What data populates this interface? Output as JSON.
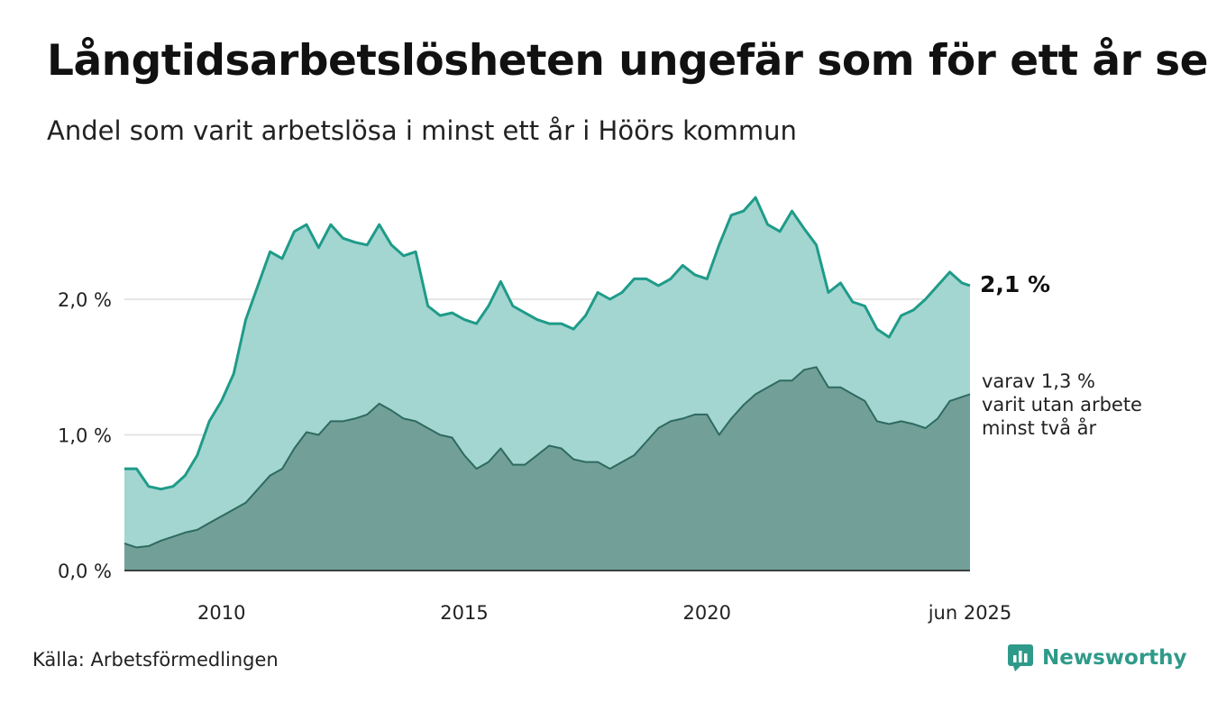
{
  "chart_data": {
    "type": "area",
    "title": "Långtidsarbetslösheten ungefär som för ett år sen",
    "subtitle": "Andel som varit arbetslösa i minst ett år i Höörs kommun",
    "x_ticks": [
      "2010",
      "2015",
      "2020",
      "jun 2025"
    ],
    "y_ticks": [
      "0,0 %",
      "1,0 %",
      "2,0 %"
    ],
    "ylim": [
      0,
      3.0
    ],
    "xlim": [
      "2008-01",
      "2025-06"
    ],
    "grid": true,
    "series": [
      {
        "label": "2,1 %",
        "color": "#1f9b89",
        "fill": "#a3d6d0",
        "points": [
          [
            "2008-01",
            0.75
          ],
          [
            "2008-04",
            0.75
          ],
          [
            "2008-07",
            0.62
          ],
          [
            "2008-10",
            0.6
          ],
          [
            "2009-01",
            0.62
          ],
          [
            "2009-04",
            0.7
          ],
          [
            "2009-07",
            0.85
          ],
          [
            "2009-10",
            1.1
          ],
          [
            "2010-01",
            1.25
          ],
          [
            "2010-04",
            1.45
          ],
          [
            "2010-07",
            1.85
          ],
          [
            "2010-10",
            2.1
          ],
          [
            "2011-01",
            2.35
          ],
          [
            "2011-04",
            2.3
          ],
          [
            "2011-07",
            2.5
          ],
          [
            "2011-10",
            2.55
          ],
          [
            "2012-01",
            2.38
          ],
          [
            "2012-04",
            2.55
          ],
          [
            "2012-07",
            2.45
          ],
          [
            "2012-10",
            2.42
          ],
          [
            "2013-01",
            2.4
          ],
          [
            "2013-04",
            2.55
          ],
          [
            "2013-07",
            2.4
          ],
          [
            "2013-10",
            2.32
          ],
          [
            "2014-01",
            2.35
          ],
          [
            "2014-04",
            1.95
          ],
          [
            "2014-07",
            1.88
          ],
          [
            "2014-10",
            1.9
          ],
          [
            "2015-01",
            1.85
          ],
          [
            "2015-04",
            1.82
          ],
          [
            "2015-07",
            1.95
          ],
          [
            "2015-10",
            2.13
          ],
          [
            "2016-01",
            1.95
          ],
          [
            "2016-04",
            1.9
          ],
          [
            "2016-07",
            1.85
          ],
          [
            "2016-10",
            1.82
          ],
          [
            "2017-01",
            1.82
          ],
          [
            "2017-04",
            1.78
          ],
          [
            "2017-07",
            1.88
          ],
          [
            "2017-10",
            2.05
          ],
          [
            "2018-01",
            2.0
          ],
          [
            "2018-04",
            2.05
          ],
          [
            "2018-07",
            2.15
          ],
          [
            "2018-10",
            2.15
          ],
          [
            "2019-01",
            2.1
          ],
          [
            "2019-04",
            2.15
          ],
          [
            "2019-07",
            2.25
          ],
          [
            "2019-10",
            2.18
          ],
          [
            "2020-01",
            2.15
          ],
          [
            "2020-04",
            2.4
          ],
          [
            "2020-07",
            2.62
          ],
          [
            "2020-10",
            2.65
          ],
          [
            "2021-01",
            2.75
          ],
          [
            "2021-04",
            2.55
          ],
          [
            "2021-07",
            2.5
          ],
          [
            "2021-10",
            2.65
          ],
          [
            "2022-01",
            2.52
          ],
          [
            "2022-04",
            2.4
          ],
          [
            "2022-07",
            2.05
          ],
          [
            "2022-10",
            2.12
          ],
          [
            "2023-01",
            1.98
          ],
          [
            "2023-04",
            1.95
          ],
          [
            "2023-07",
            1.78
          ],
          [
            "2023-10",
            1.72
          ],
          [
            "2024-01",
            1.88
          ],
          [
            "2024-04",
            1.92
          ],
          [
            "2024-07",
            2.0
          ],
          [
            "2024-10",
            2.1
          ],
          [
            "2025-01",
            2.2
          ],
          [
            "2025-04",
            2.12
          ],
          [
            "2025-06",
            2.1
          ]
        ]
      },
      {
        "label": "varav 1,3 %\nvarit utan arbete\nminst två år",
        "color": "#2e6a60",
        "fill": "#72a099",
        "points": [
          [
            "2008-01",
            0.2
          ],
          [
            "2008-04",
            0.17
          ],
          [
            "2008-07",
            0.18
          ],
          [
            "2008-10",
            0.22
          ],
          [
            "2009-01",
            0.25
          ],
          [
            "2009-04",
            0.28
          ],
          [
            "2009-07",
            0.3
          ],
          [
            "2009-10",
            0.35
          ],
          [
            "2010-01",
            0.4
          ],
          [
            "2010-04",
            0.45
          ],
          [
            "2010-07",
            0.5
          ],
          [
            "2010-10",
            0.6
          ],
          [
            "2011-01",
            0.7
          ],
          [
            "2011-04",
            0.75
          ],
          [
            "2011-07",
            0.9
          ],
          [
            "2011-10",
            1.02
          ],
          [
            "2012-01",
            1.0
          ],
          [
            "2012-04",
            1.1
          ],
          [
            "2012-07",
            1.1
          ],
          [
            "2012-10",
            1.12
          ],
          [
            "2013-01",
            1.15
          ],
          [
            "2013-04",
            1.23
          ],
          [
            "2013-07",
            1.18
          ],
          [
            "2013-10",
            1.12
          ],
          [
            "2014-01",
            1.1
          ],
          [
            "2014-04",
            1.05
          ],
          [
            "2014-07",
            1.0
          ],
          [
            "2014-10",
            0.98
          ],
          [
            "2015-01",
            0.85
          ],
          [
            "2015-04",
            0.75
          ],
          [
            "2015-07",
            0.8
          ],
          [
            "2015-10",
            0.9
          ],
          [
            "2016-01",
            0.78
          ],
          [
            "2016-04",
            0.78
          ],
          [
            "2016-07",
            0.85
          ],
          [
            "2016-10",
            0.92
          ],
          [
            "2017-01",
            0.9
          ],
          [
            "2017-04",
            0.82
          ],
          [
            "2017-07",
            0.8
          ],
          [
            "2017-10",
            0.8
          ],
          [
            "2018-01",
            0.75
          ],
          [
            "2018-04",
            0.8
          ],
          [
            "2018-07",
            0.85
          ],
          [
            "2018-10",
            0.95
          ],
          [
            "2019-01",
            1.05
          ],
          [
            "2019-04",
            1.1
          ],
          [
            "2019-07",
            1.12
          ],
          [
            "2019-10",
            1.15
          ],
          [
            "2020-01",
            1.15
          ],
          [
            "2020-04",
            1.0
          ],
          [
            "2020-07",
            1.12
          ],
          [
            "2020-10",
            1.22
          ],
          [
            "2021-01",
            1.3
          ],
          [
            "2021-04",
            1.35
          ],
          [
            "2021-07",
            1.4
          ],
          [
            "2021-10",
            1.4
          ],
          [
            "2022-01",
            1.48
          ],
          [
            "2022-04",
            1.5
          ],
          [
            "2022-07",
            1.35
          ],
          [
            "2022-10",
            1.35
          ],
          [
            "2023-01",
            1.3
          ],
          [
            "2023-04",
            1.25
          ],
          [
            "2023-07",
            1.1
          ],
          [
            "2023-10",
            1.08
          ],
          [
            "2024-01",
            1.1
          ],
          [
            "2024-04",
            1.08
          ],
          [
            "2024-07",
            1.05
          ],
          [
            "2024-10",
            1.12
          ],
          [
            "2025-01",
            1.25
          ],
          [
            "2025-04",
            1.28
          ],
          [
            "2025-06",
            1.3
          ]
        ]
      }
    ]
  },
  "source": "Källa: Arbetsförmedlingen",
  "brand": {
    "name": "Newsworthy",
    "icon": "newsworthy-logo-icon",
    "color": "#2f9a8a"
  }
}
